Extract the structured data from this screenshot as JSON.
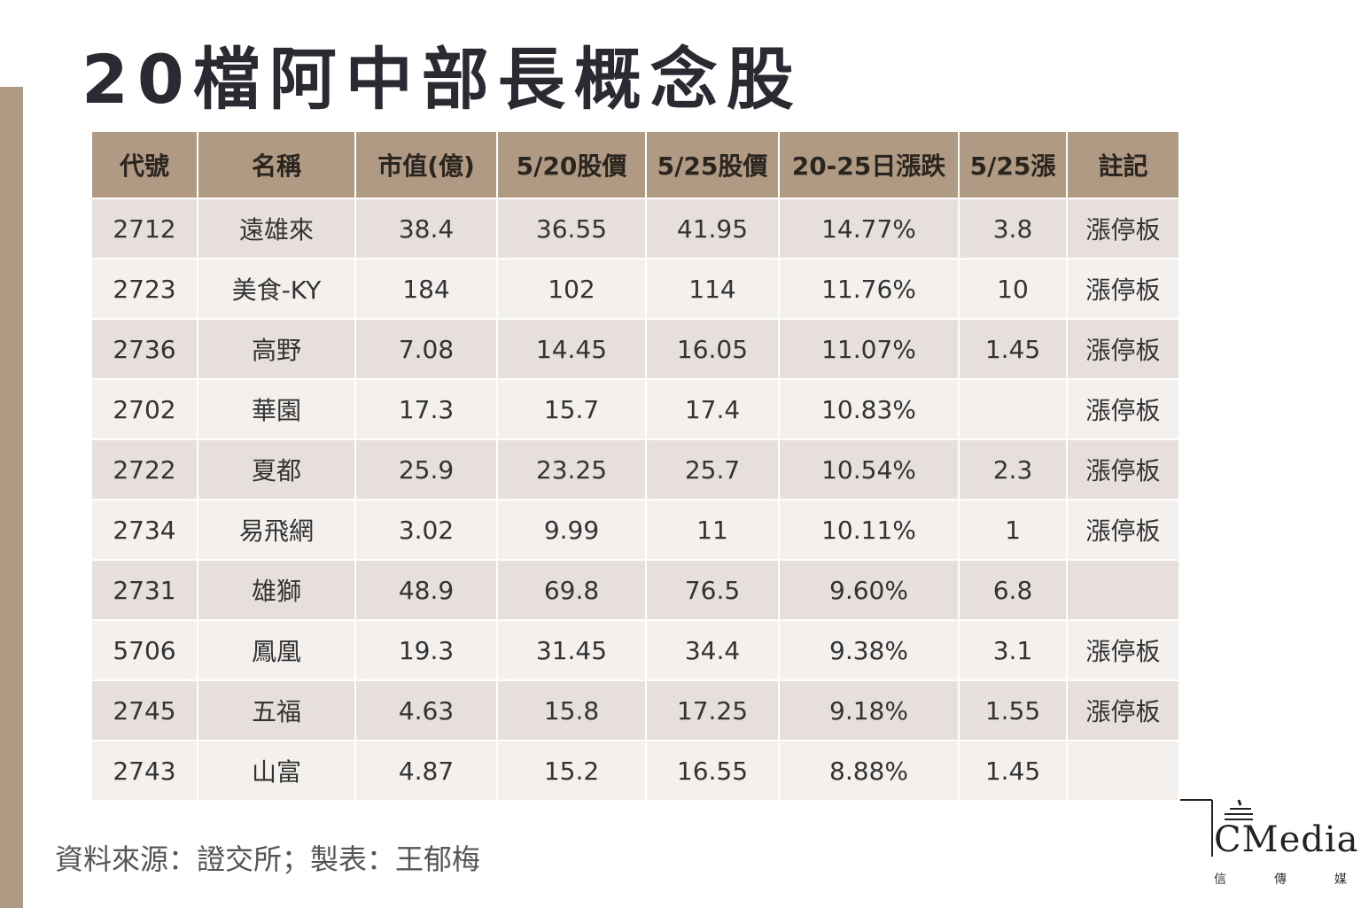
{
  "title": "20檔阿中部長概念股",
  "table": {
    "headers": [
      "代號",
      "名稱",
      "市值(億)",
      "5/20股價",
      "5/25股價",
      "20-25日漲跌",
      "5/25漲",
      "註記"
    ],
    "rows": [
      [
        "2712",
        "遠雄來",
        "38.4",
        "36.55",
        "41.95",
        "14.77%",
        "3.8",
        "漲停板"
      ],
      [
        "2723",
        "美食-KY",
        "184",
        "102",
        "114",
        "11.76%",
        "10",
        "漲停板"
      ],
      [
        "2736",
        "高野",
        "7.08",
        "14.45",
        "16.05",
        "11.07%",
        "1.45",
        "漲停板"
      ],
      [
        "2702",
        "華園",
        "17.3",
        "15.7",
        "17.4",
        "10.83%",
        "",
        "漲停板"
      ],
      [
        "2722",
        "夏都",
        "25.9",
        "23.25",
        "25.7",
        "10.54%",
        "2.3",
        "漲停板"
      ],
      [
        "2734",
        "易飛網",
        "3.02",
        "9.99",
        "11",
        "10.11%",
        "1",
        "漲停板"
      ],
      [
        "2731",
        "雄獅",
        "48.9",
        "69.8",
        "76.5",
        "9.60%",
        "6.8",
        ""
      ],
      [
        "5706",
        "鳳凰",
        "19.3",
        "31.45",
        "34.4",
        "9.38%",
        "3.1",
        "漲停板"
      ],
      [
        "2745",
        "五福",
        "4.63",
        "15.8",
        "17.25",
        "9.18%",
        "1.55",
        "漲停板"
      ],
      [
        "2743",
        "山富",
        "4.87",
        "15.2",
        "16.55",
        "8.88%",
        "1.45",
        ""
      ]
    ]
  },
  "source": "資料來源：證交所；製表：王郁梅",
  "logo": {
    "word": "CMedia",
    "sub": [
      "信",
      "傳",
      "媒"
    ]
  },
  "colors": {
    "accent": "#b09a83",
    "row_odd": "#e6dfdc",
    "row_even": "#f3f0ee",
    "title": "#2a2a33"
  }
}
